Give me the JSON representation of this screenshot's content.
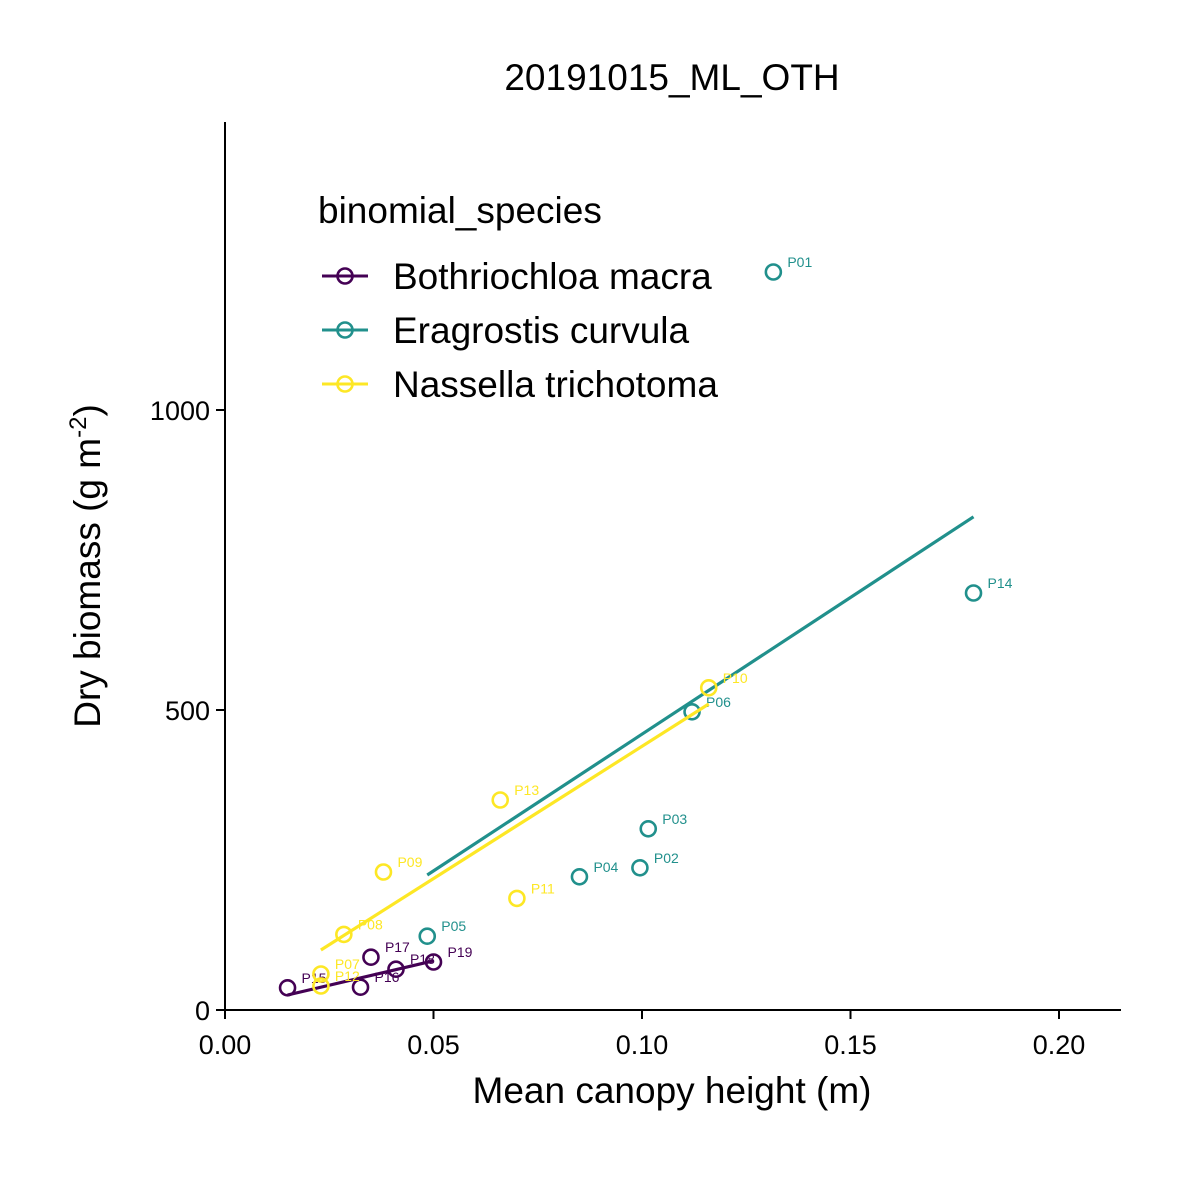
{
  "chart_data": {
    "type": "scatter",
    "title": "20191015_ML_OTH",
    "xlabel": "Mean canopy height (m)",
    "ylabel_main": "Dry biomass (g m",
    "ylabel_sup": "-2",
    "ylabel_tail": ")",
    "xlim": [
      0.0,
      0.215
    ],
    "ylim": [
      0,
      1480
    ],
    "xticks": [
      0.0,
      0.05,
      0.1,
      0.15,
      0.2
    ],
    "xtick_labels": [
      "0.00",
      "0.05",
      "0.10",
      "0.15",
      "0.20"
    ],
    "yticks": [
      0,
      500,
      1000
    ],
    "ytick_labels": [
      "0",
      "500",
      "1000"
    ],
    "grid": false,
    "legend": {
      "title": "binomial_species",
      "position": "top-left"
    },
    "series": [
      {
        "name": "Bothriochloa macra",
        "color": "#440154",
        "points": [
          {
            "label": "P15",
            "x": 0.015,
            "y": 37
          },
          {
            "label": "P17",
            "x": 0.035,
            "y": 88
          },
          {
            "label": "P18",
            "x": 0.041,
            "y": 68
          },
          {
            "label": "P16",
            "x": 0.0325,
            "y": 38
          },
          {
            "label": "P19",
            "x": 0.05,
            "y": 80
          }
        ],
        "fit": {
          "x": [
            0.015,
            0.05
          ],
          "y": [
            25,
            82
          ]
        }
      },
      {
        "name": "Eragrostis curvula",
        "color": "#21908C",
        "points": [
          {
            "label": "P01",
            "x": 0.1315,
            "y": 1230
          },
          {
            "label": "P14",
            "x": 0.1795,
            "y": 695
          },
          {
            "label": "P06",
            "x": 0.112,
            "y": 497
          },
          {
            "label": "P03",
            "x": 0.1015,
            "y": 302
          },
          {
            "label": "P02",
            "x": 0.0995,
            "y": 237
          },
          {
            "label": "P04",
            "x": 0.085,
            "y": 222
          },
          {
            "label": "P05",
            "x": 0.0485,
            "y": 123
          }
        ],
        "fit": {
          "x": [
            0.0485,
            0.1795
          ],
          "y": [
            225,
            822
          ]
        }
      },
      {
        "name": "Nassella trichotoma",
        "color": "#FDE725",
        "points": [
          {
            "label": "P10",
            "x": 0.116,
            "y": 537
          },
          {
            "label": "P13",
            "x": 0.066,
            "y": 350
          },
          {
            "label": "P09",
            "x": 0.038,
            "y": 230
          },
          {
            "label": "P11",
            "x": 0.07,
            "y": 186
          },
          {
            "label": "P08",
            "x": 0.0285,
            "y": 126
          },
          {
            "label": "P07",
            "x": 0.023,
            "y": 60
          },
          {
            "label": "P12",
            "x": 0.023,
            "y": 40
          }
        ],
        "fit": {
          "x": [
            0.023,
            0.116
          ],
          "y": [
            100,
            510
          ]
        }
      }
    ]
  }
}
